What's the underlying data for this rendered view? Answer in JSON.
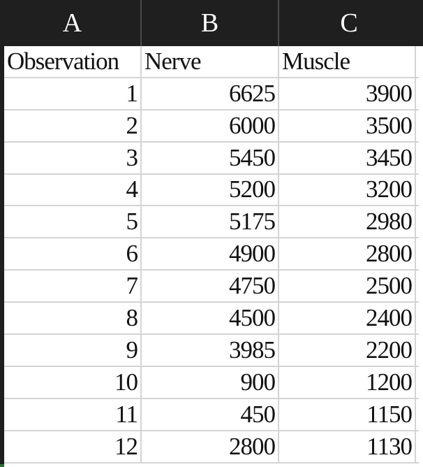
{
  "columns": [
    "A",
    "B",
    "C"
  ],
  "header": {
    "observation": "Observation",
    "nerve": "Nerve",
    "muscle": "Muscle"
  },
  "rows": [
    {
      "observation": "1",
      "nerve": "6625",
      "muscle": "3900"
    },
    {
      "observation": "2",
      "nerve": "6000",
      "muscle": "3500"
    },
    {
      "observation": "3",
      "nerve": "5450",
      "muscle": "3450"
    },
    {
      "observation": "4",
      "nerve": "5200",
      "muscle": "3200"
    },
    {
      "observation": "5",
      "nerve": "5175",
      "muscle": "2980"
    },
    {
      "observation": "6",
      "nerve": "4900",
      "muscle": "2800"
    },
    {
      "observation": "7",
      "nerve": "4750",
      "muscle": "2500"
    },
    {
      "observation": "8",
      "nerve": "4500",
      "muscle": "2400"
    },
    {
      "observation": "9",
      "nerve": "3985",
      "muscle": "2200"
    },
    {
      "observation": "10",
      "nerve": "900",
      "muscle": "1200"
    },
    {
      "observation": "11",
      "nerve": "450",
      "muscle": "1150"
    },
    {
      "observation": "12",
      "nerve": "2800",
      "muscle": "1130"
    }
  ],
  "colors": {
    "header_bg": "#1f1f1f",
    "header_text": "#ffffff",
    "gridline": "#d4d4d4",
    "cell_text": "#111111"
  }
}
